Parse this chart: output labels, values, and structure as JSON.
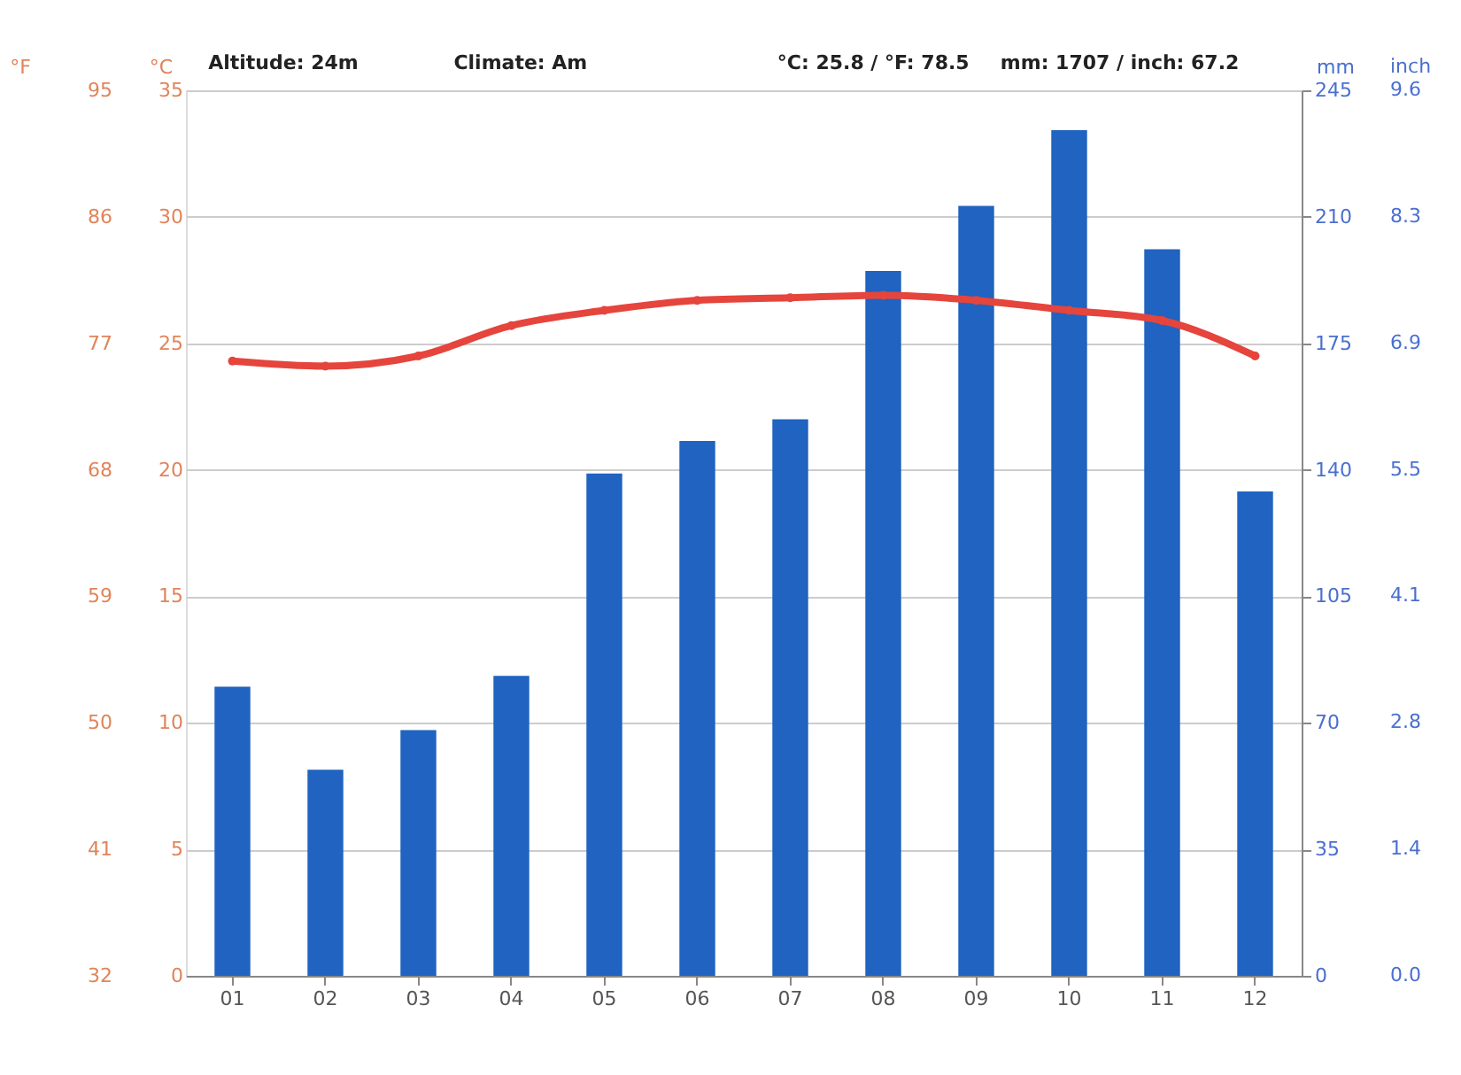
{
  "chart_data": {
    "type": "bar",
    "categories": [
      "01",
      "02",
      "03",
      "04",
      "05",
      "06",
      "07",
      "08",
      "09",
      "10",
      "11",
      "12"
    ],
    "series": [
      {
        "axis": "y2",
        "color": "#2063c0",
        "values": [
          80,
          57,
          68,
          83,
          139,
          148,
          154,
          195,
          213,
          234,
          201,
          134
        ]
      },
      {
        "type": "line",
        "axis": "y",
        "color": "#e5453c",
        "marker": "circle",
        "line_style": "solid",
        "values": [
          24.3,
          24.1,
          24.5,
          25.7,
          26.3,
          26.7,
          26.8,
          26.9,
          26.7,
          26.3,
          25.9,
          24.5
        ]
      }
    ],
    "ylabel": "°C",
    "ylim": [
      0,
      35
    ],
    "yticks": [
      0,
      5,
      10,
      15,
      20,
      25,
      30,
      35
    ],
    "y3label": "°F",
    "y3lim": [
      32,
      95
    ],
    "y3ticks": [
      32,
      41,
      50,
      59,
      68,
      77,
      86,
      95
    ],
    "y2label": "mm",
    "y2lim": [
      0,
      245
    ],
    "y2ticks": [
      0,
      35,
      70,
      105,
      140,
      175,
      210,
      245
    ],
    "annotations": [
      "Altitude: 24m",
      "Climate: Am",
      "°C: 25.8 / °F: 78.5",
      "mm: 1707 / inch: 67.2",
      "inch",
      "0.0",
      "1.4",
      "2.8",
      "4.1",
      "5.5",
      "6.9",
      "8.3",
      "9.6"
    ],
    "grid": "y",
    "legend": false
  }
}
